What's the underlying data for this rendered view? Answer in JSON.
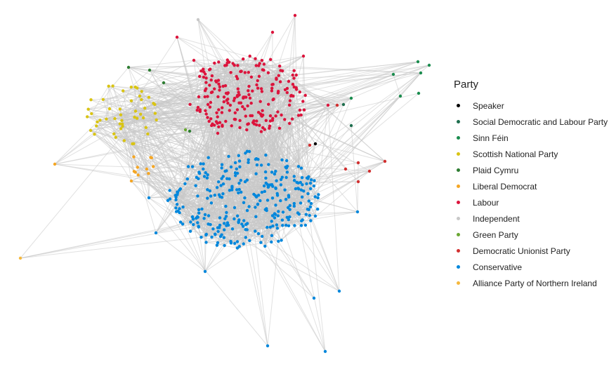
{
  "legend": {
    "title": "Party",
    "items": [
      {
        "label": "Speaker",
        "color": "#000000"
      },
      {
        "label": "Social Democratic and Labour Party",
        "color": "#1e6e4e"
      },
      {
        "label": "Sinn Féin",
        "color": "#1a8c4e"
      },
      {
        "label": "Scottish National Party",
        "color": "#d9c414"
      },
      {
        "label": "Plaid Cymru",
        "color": "#2e7d32"
      },
      {
        "label": "Liberal Democrat",
        "color": "#f5a623"
      },
      {
        "label": "Labour",
        "color": "#dc143c"
      },
      {
        "label": "Independent",
        "color": "#c8c8c8"
      },
      {
        "label": "Green Party",
        "color": "#6aa733"
      },
      {
        "label": "Democratic Unionist Party",
        "color": "#d22f2f"
      },
      {
        "label": "Conservative",
        "color": "#0087dc"
      },
      {
        "label": "Alliance Party of Northern Ireland",
        "color": "#f5b83d"
      }
    ]
  },
  "edge_color": "#c8c8c8"
}
